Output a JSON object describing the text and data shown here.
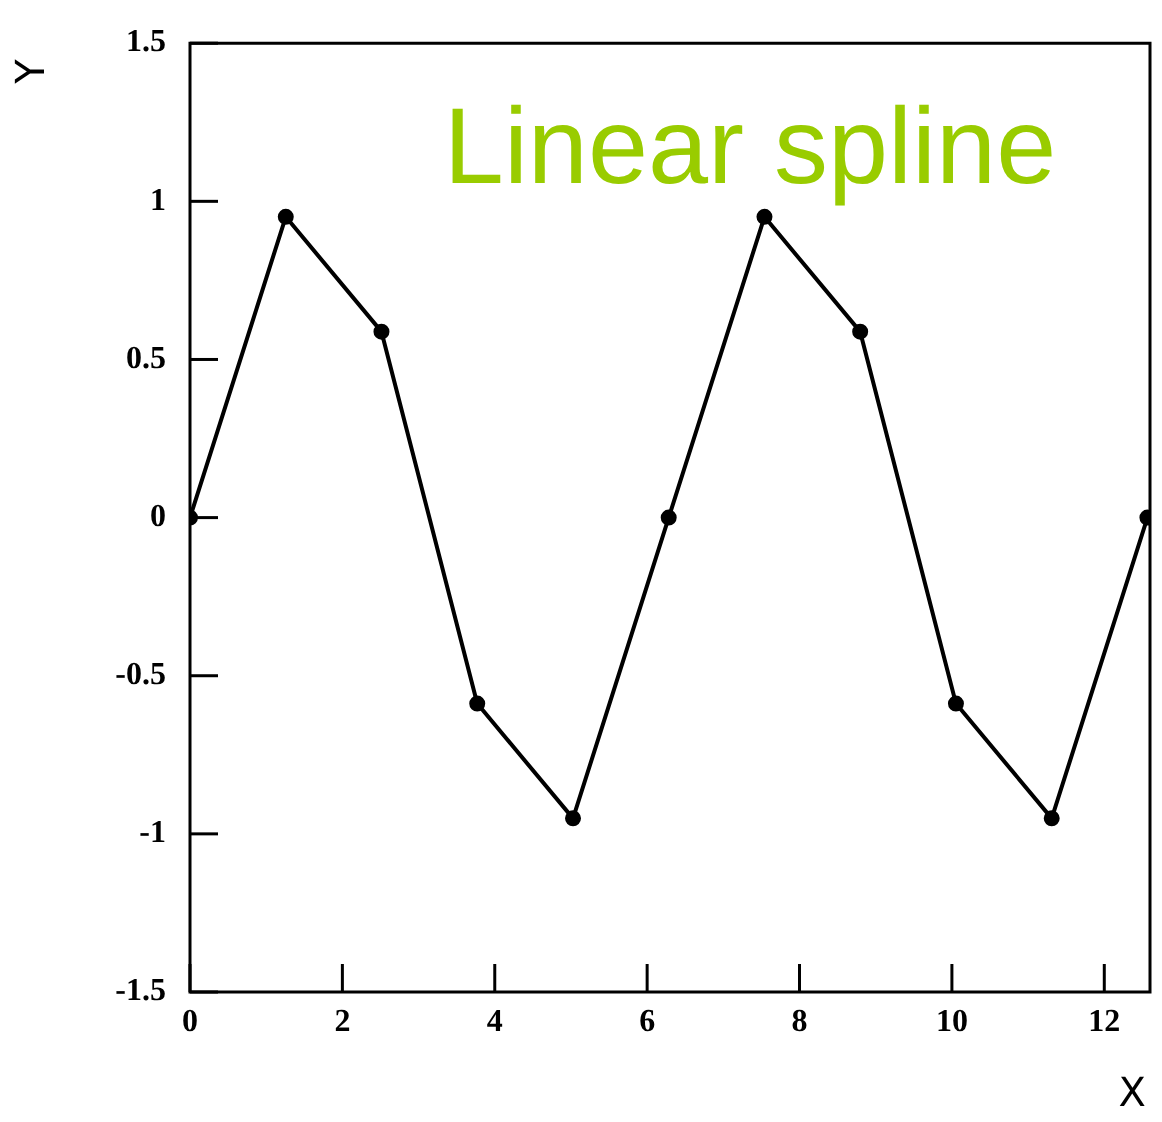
{
  "chart_data": {
    "type": "line",
    "title": "Linear spline",
    "xlabel": "X",
    "ylabel": "Y",
    "x": [
      0,
      1.257,
      2.513,
      3.77,
      5.027,
      6.283,
      7.54,
      8.796,
      10.053,
      11.31,
      12.566
    ],
    "series": [
      {
        "color": "#000000",
        "values": [
          0,
          0.951,
          0.588,
          -0.588,
          -0.951,
          0,
          0.951,
          0.588,
          -0.588,
          -0.951,
          0
        ]
      }
    ],
    "xlim": [
      0,
      12.6
    ],
    "xticks": [
      0,
      2,
      4,
      6,
      8,
      10,
      12
    ],
    "ylim": [
      -1.5,
      1.5
    ],
    "yticks": [
      -1.5,
      -1,
      -0.5,
      0,
      0.5,
      1,
      1.5
    ],
    "marker": "circle",
    "line_style": "solid",
    "grid": false,
    "legend": false
  }
}
